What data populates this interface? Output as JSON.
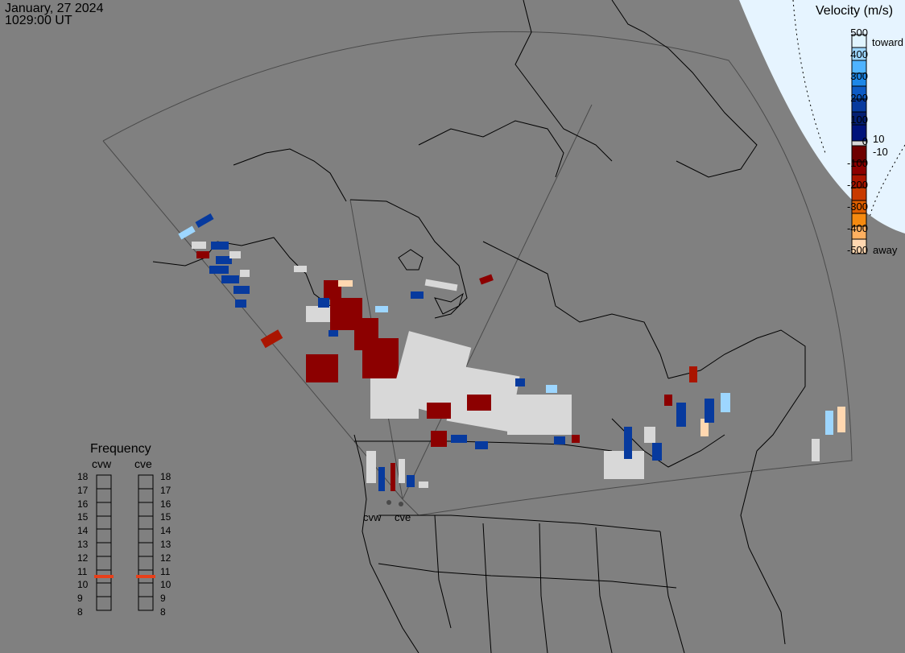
{
  "header": {
    "date": "January, 27 2024",
    "time": "1029:00 UT"
  },
  "velocity_legend": {
    "title": "Velocity (m/s)",
    "ticks": [
      "500",
      "400",
      "300",
      "200",
      "100",
      "0",
      "-100",
      "-200",
      "-300",
      "-400",
      "-500"
    ],
    "toward_label": "toward",
    "away_label": "away",
    "near_zero_pos": "10",
    "near_zero_neg": "-10",
    "colors_toward": [
      "#e0f4ff",
      "#9dd6ff",
      "#4fb3ff",
      "#1c87e8",
      "#0d5bc4",
      "#073a9e",
      "#041f72",
      "#00137a"
    ],
    "color_zero": "#d8d8d8",
    "colors_away": [
      "#6e0000",
      "#8c0000",
      "#aa1500",
      "#c83a00",
      "#e06000",
      "#f58a10",
      "#ffb060",
      "#ffd7b0"
    ]
  },
  "frequency_panel": {
    "title": "Frequency",
    "radars": [
      {
        "name": "cvw",
        "value_mhz": 11
      },
      {
        "name": "cve",
        "value_mhz": 11
      }
    ],
    "scale": [
      "18",
      "17",
      "16",
      "15",
      "14",
      "13",
      "12",
      "11",
      "10",
      "9",
      "8"
    ],
    "marker_color": "#e8401a"
  },
  "radar_sites": [
    "cvw",
    "cve"
  ],
  "map": {
    "land_color": "#808080",
    "line_color": "#000000",
    "night_terminator_color": "#e6f4ff"
  }
}
